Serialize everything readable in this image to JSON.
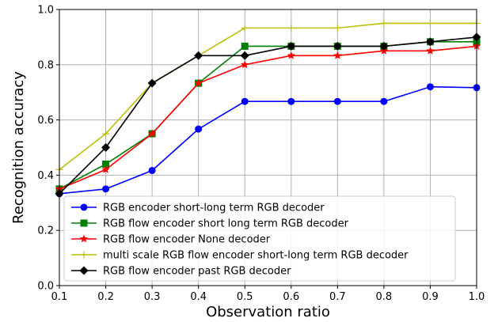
{
  "chart_data": {
    "type": "line",
    "xlabel": "Observation ratio",
    "ylabel": "Recognition accuracy",
    "xlim": [
      0.1,
      1.0
    ],
    "ylim": [
      0.0,
      1.0
    ],
    "xticks": [
      "0.1",
      "0.2",
      "0.3",
      "0.4",
      "0.5",
      "0.6",
      "0.7",
      "0.8",
      "0.9",
      "1.0"
    ],
    "yticks": [
      "0.0",
      "0.2",
      "0.4",
      "0.6",
      "0.8",
      "1.0"
    ],
    "grid": true,
    "legend_position": "lower-right",
    "x": [
      0.1,
      0.2,
      0.3,
      0.4,
      0.5,
      0.6,
      0.7,
      0.8,
      0.9,
      1.0
    ],
    "series": [
      {
        "name": "RGB encoder short-long term RGB decoder",
        "color": "#0000ff",
        "marker": "circle",
        "values": [
          0.333,
          0.35,
          0.417,
          0.567,
          0.667,
          0.667,
          0.667,
          0.667,
          0.72,
          0.717
        ]
      },
      {
        "name": "RGB flow encoder short long term RGB decoder",
        "color": "#008000",
        "marker": "square",
        "values": [
          0.35,
          0.44,
          0.55,
          0.733,
          0.867,
          0.867,
          0.867,
          0.867,
          0.883,
          0.883
        ]
      },
      {
        "name": "RGB flow encoder None decoder",
        "color": "#ff0000",
        "marker": "star",
        "values": [
          0.35,
          0.42,
          0.55,
          0.733,
          0.8,
          0.833,
          0.833,
          0.85,
          0.85,
          0.867
        ]
      },
      {
        "name": "multi scale RGB flow encoder short-long term RGB decoder",
        "color": "#bfbf00",
        "marker": "plus",
        "values": [
          0.42,
          0.55,
          0.733,
          0.833,
          0.933,
          0.933,
          0.933,
          0.95,
          0.95,
          0.95
        ]
      },
      {
        "name": "RGB flow encoder past RGB decoder",
        "color": "#000000",
        "marker": "diamond",
        "values": [
          0.333,
          0.5,
          0.733,
          0.833,
          0.833,
          0.867,
          0.867,
          0.867,
          0.883,
          0.9
        ]
      }
    ]
  }
}
